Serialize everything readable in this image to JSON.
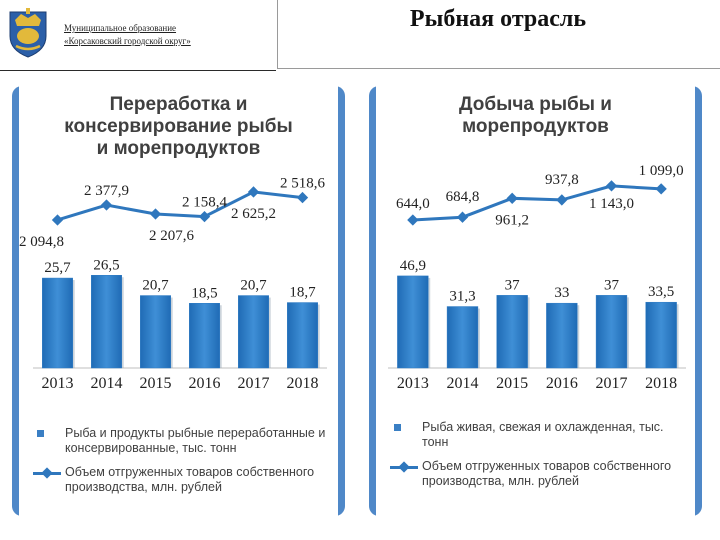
{
  "header": {
    "org_line1": "Муниципальное образование",
    "org_line2": "«Корсаковский городской округ»",
    "title": "Рыбная отрасль"
  },
  "colors": {
    "bar": "#2e7bc4",
    "line": "#2f77bd",
    "panel_border": "#4f88c8",
    "text": "#404040"
  },
  "chart_data": [
    {
      "type": "bar",
      "title": "Переработка и консервирование рыбы и морепродуктов",
      "title_lines": [
        "Переработка и",
        "консервирование рыбы",
        "и морепродуктов"
      ],
      "categories": [
        "2013",
        "2014",
        "2015",
        "2016",
        "2017",
        "2018"
      ],
      "series": [
        {
          "name": "Рыба и продукты рыбные переработанные и консервированные, тыс. тонн",
          "kind": "bar",
          "values": [
            25.7,
            26.5,
            20.7,
            18.5,
            20.7,
            18.7
          ],
          "labels": [
            "25,7",
            "26,5",
            "20,7",
            "18,5",
            "20,7",
            "18,7"
          ]
        },
        {
          "name": "Объем отгруженных товаров собственного производства, млн. рублей",
          "kind": "line",
          "values": [
            2094.8,
            2377.9,
            2207.6,
            2158.4,
            2625.2,
            2518.6
          ],
          "labels": [
            "2 094,8",
            "2 377,9",
            "2 207,6",
            "2 158,4",
            "2 625,2",
            "2 518,6"
          ]
        }
      ],
      "legend_lines": [
        [
          "Рыба и продукты рыбные переработанные и",
          "консервированные, тыс. тонн"
        ],
        [
          "Объем отгруженных товаров собственного",
          "производства, млн. рублей"
        ]
      ],
      "legend_position": "bottom"
    },
    {
      "type": "bar",
      "title": "Добыча рыбы и морепродуктов",
      "title_lines": [
        "Добыча рыбы и",
        "морепродуктов"
      ],
      "categories": [
        "2013",
        "2014",
        "2015",
        "2016",
        "2017",
        "2018"
      ],
      "series": [
        {
          "name": "Рыба живая, свежая и охлажденная, тыс. тонн",
          "kind": "bar",
          "values": [
            46.9,
            31.3,
            37,
            33,
            37,
            33.5
          ],
          "labels": [
            "46,9",
            "31,3",
            "37",
            "33",
            "37",
            "33,5"
          ]
        },
        {
          "name": "Объем отгруженных товаров собственного производства, млн. рублей",
          "kind": "line",
          "values": [
            644.0,
            684.8,
            961.2,
            937.8,
            1143.0,
            1099.0
          ],
          "labels": [
            "644,0",
            "684,8",
            "961,2",
            "937,8",
            "1 143,0",
            "1 099,0"
          ]
        }
      ],
      "legend_lines": [
        [
          "Рыба живая, свежая и охлажденная, тыс.",
          "тонн"
        ],
        [
          "Объем отгруженных товаров собственного",
          "производства, млн. рублей"
        ]
      ],
      "legend_position": "bottom"
    }
  ]
}
